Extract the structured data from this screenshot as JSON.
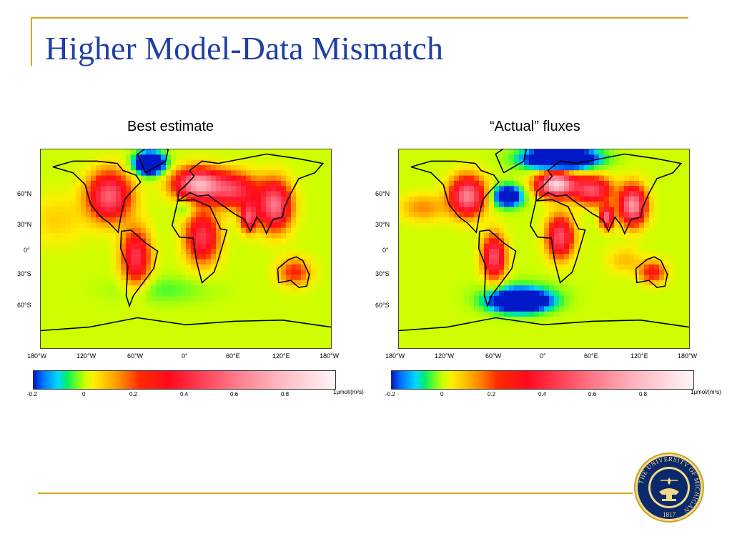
{
  "slide": {
    "title": "Higher Model-Data Mismatch",
    "accent_color": "#DAA520",
    "title_color": "#1F3FA6"
  },
  "panels": [
    {
      "subtitle": "Best estimate",
      "lat_labels": [
        "60°N",
        "30°N",
        "0°",
        "30°S",
        "60°S"
      ],
      "lon_labels": [
        "180°W",
        "120°W",
        "60°W",
        "0°",
        "60°E",
        "120°E",
        "180°W"
      ]
    },
    {
      "subtitle": "“Actual” fluxes",
      "lat_labels": [
        "60°N",
        "30°N",
        "0°",
        "30°S",
        "60°S"
      ],
      "lon_labels": [
        "180°W",
        "120°W",
        "60°W",
        "0°",
        "60°E",
        "120°E",
        "180°W"
      ]
    }
  ],
  "colorbar": {
    "ticks": [
      "-0.2",
      "0",
      "0.2",
      "0.4",
      "0.6",
      "0.8"
    ],
    "end_label": "1μmol/(m²s)",
    "tick_values": [
      -0.2,
      0,
      0.2,
      0.4,
      0.6,
      0.8,
      1.0
    ]
  },
  "seal": {
    "text": "THE UNIVERSITY OF MICHIGAN",
    "year": "1817",
    "icon": "university-of-michigan-seal-icon"
  }
}
